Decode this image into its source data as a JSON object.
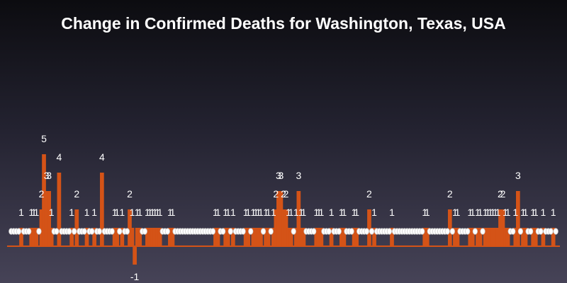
{
  "chart_data": {
    "type": "bar",
    "title": "Change in Confirmed Deaths for Washington, Texas, USA",
    "xlabel": "",
    "ylabel": "",
    "ylim": [
      -1,
      5
    ],
    "bar_color": "#d45317",
    "label_color": "#ffffff",
    "values": [
      0,
      0,
      0,
      0,
      1,
      0,
      0,
      0,
      1,
      1,
      1,
      0,
      2,
      5,
      3,
      3,
      1,
      0,
      0,
      4,
      0,
      0,
      0,
      0,
      1,
      0,
      2,
      0,
      0,
      0,
      1,
      0,
      0,
      1,
      0,
      0,
      4,
      0,
      0,
      0,
      0,
      1,
      1,
      0,
      1,
      0,
      0,
      2,
      1,
      -1,
      1,
      1,
      0,
      0,
      1,
      1,
      1,
      1,
      1,
      1,
      0,
      0,
      0,
      1,
      1,
      0,
      0,
      0,
      0,
      0,
      0,
      0,
      0,
      0,
      0,
      0,
      0,
      0,
      0,
      0,
      0,
      1,
      1,
      0,
      0,
      1,
      1,
      0,
      1,
      0,
      0,
      0,
      0,
      1,
      1,
      0,
      1,
      1,
      1,
      1,
      0,
      1,
      1,
      0,
      1,
      2,
      3,
      3,
      2,
      2,
      1,
      1,
      0,
      1,
      3,
      1,
      1,
      0,
      0,
      0,
      0,
      1,
      1,
      1,
      0,
      0,
      0,
      1,
      0,
      0,
      0,
      1,
      1,
      0,
      0,
      0,
      1,
      1,
      0,
      0,
      0,
      0,
      2,
      0,
      1,
      0,
      0,
      0,
      0,
      0,
      0,
      1,
      0,
      0,
      0,
      0,
      0,
      0,
      0,
      0,
      0,
      0,
      0,
      0,
      1,
      1,
      0,
      0,
      0,
      0,
      0,
      0,
      0,
      0,
      2,
      0,
      1,
      1,
      0,
      0,
      0,
      0,
      1,
      1,
      0,
      1,
      1,
      0,
      1,
      1,
      1,
      1,
      1,
      1,
      2,
      2,
      1,
      1,
      0,
      0,
      1,
      3,
      0,
      1,
      1,
      0,
      0,
      1,
      1,
      0,
      0,
      1,
      0,
      0,
      0,
      1,
      0
    ]
  }
}
